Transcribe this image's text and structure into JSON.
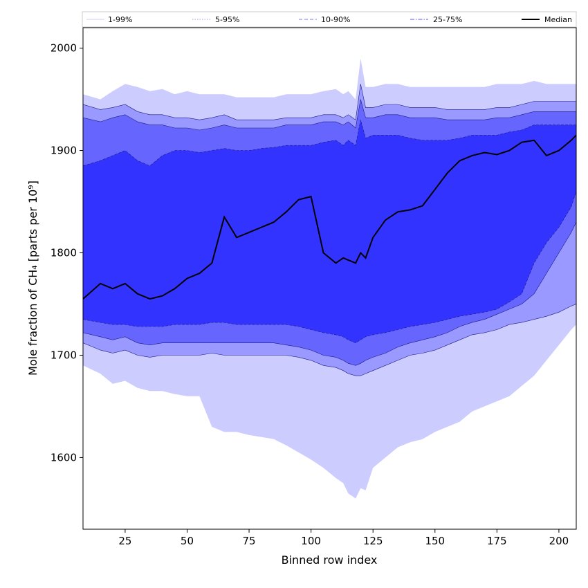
{
  "chart_data": {
    "type": "area",
    "xlabel": "Binned row index",
    "ylabel": "Mole fraction of CH₄ [parts per 10⁹]",
    "xlim": [
      8,
      207
    ],
    "ylim": [
      1530,
      2020
    ],
    "xticks": [
      25,
      50,
      75,
      100,
      125,
      150,
      175,
      200
    ],
    "yticks": [
      1600,
      1700,
      1800,
      1900,
      2000
    ],
    "grid": false,
    "legend_position": "top",
    "legend": [
      {
        "label": "1-99%",
        "color": "#ccccff",
        "style": "thin"
      },
      {
        "label": "5-95%",
        "color": "#9999ff",
        "style": "dotted"
      },
      {
        "label": "10-90%",
        "color": "#7777ff",
        "style": "dashed"
      },
      {
        "label": "25-75%",
        "color": "#5555ff",
        "style": "dashdot"
      },
      {
        "label": "Median",
        "color": "#000000",
        "style": "solid"
      }
    ],
    "x": [
      8,
      15,
      20,
      25,
      30,
      35,
      40,
      45,
      50,
      55,
      60,
      65,
      70,
      75,
      80,
      85,
      90,
      95,
      100,
      105,
      110,
      113,
      115,
      118,
      120,
      122,
      125,
      130,
      135,
      140,
      145,
      150,
      155,
      160,
      165,
      170,
      175,
      180,
      185,
      190,
      195,
      200,
      205,
      207
    ],
    "bands": [
      {
        "name": "1-99%",
        "color": "#ccccff",
        "lower": [
          1690,
          1682,
          1672,
          1675,
          1668,
          1665,
          1665,
          1662,
          1660,
          1660,
          1630,
          1625,
          1625,
          1622,
          1620,
          1618,
          1612,
          1605,
          1598,
          1590,
          1580,
          1575,
          1565,
          1560,
          1570,
          1568,
          1590,
          1600,
          1610,
          1615,
          1618,
          1625,
          1630,
          1635,
          1645,
          1650,
          1655,
          1660,
          1670,
          1680,
          1695,
          1710,
          1725,
          1730
        ],
        "upper": [
          1955,
          1950,
          1958,
          1965,
          1962,
          1958,
          1960,
          1955,
          1958,
          1955,
          1955,
          1955,
          1952,
          1952,
          1952,
          1952,
          1955,
          1955,
          1955,
          1958,
          1960,
          1955,
          1958,
          1950,
          1990,
          1962,
          1962,
          1965,
          1965,
          1962,
          1962,
          1962,
          1962,
          1962,
          1962,
          1962,
          1965,
          1965,
          1965,
          1968,
          1965,
          1965,
          1965,
          1965
        ]
      },
      {
        "name": "5-95%",
        "color": "#9999ff",
        "lower": [
          1712,
          1705,
          1702,
          1705,
          1700,
          1698,
          1700,
          1700,
          1700,
          1700,
          1702,
          1700,
          1700,
          1700,
          1700,
          1700,
          1700,
          1698,
          1695,
          1690,
          1688,
          1685,
          1682,
          1680,
          1680,
          1682,
          1685,
          1690,
          1695,
          1700,
          1702,
          1705,
          1710,
          1715,
          1720,
          1722,
          1725,
          1730,
          1732,
          1735,
          1738,
          1742,
          1748,
          1750
        ],
        "upper": [
          1945,
          1940,
          1942,
          1945,
          1938,
          1935,
          1935,
          1932,
          1932,
          1930,
          1932,
          1935,
          1930,
          1930,
          1930,
          1930,
          1932,
          1932,
          1932,
          1935,
          1935,
          1932,
          1935,
          1930,
          1965,
          1942,
          1942,
          1945,
          1945,
          1942,
          1942,
          1942,
          1940,
          1940,
          1940,
          1940,
          1942,
          1942,
          1945,
          1948,
          1948,
          1948,
          1948,
          1948
        ]
      },
      {
        "name": "10-90%",
        "color": "#6666ff",
        "lower": [
          1722,
          1718,
          1715,
          1718,
          1712,
          1710,
          1712,
          1712,
          1712,
          1712,
          1712,
          1712,
          1712,
          1712,
          1712,
          1712,
          1710,
          1708,
          1705,
          1700,
          1698,
          1695,
          1692,
          1690,
          1692,
          1695,
          1698,
          1702,
          1708,
          1712,
          1715,
          1718,
          1722,
          1728,
          1732,
          1735,
          1740,
          1745,
          1750,
          1760,
          1780,
          1800,
          1820,
          1830
        ],
        "upper": [
          1932,
          1928,
          1932,
          1935,
          1928,
          1925,
          1925,
          1922,
          1922,
          1920,
          1922,
          1925,
          1922,
          1922,
          1922,
          1922,
          1925,
          1925,
          1925,
          1928,
          1928,
          1925,
          1928,
          1922,
          1950,
          1932,
          1932,
          1935,
          1935,
          1932,
          1932,
          1932,
          1930,
          1930,
          1930,
          1930,
          1932,
          1932,
          1935,
          1938,
          1938,
          1938,
          1938,
          1938
        ]
      },
      {
        "name": "25-75%",
        "color": "#3333ff",
        "lower": [
          1735,
          1732,
          1730,
          1730,
          1728,
          1728,
          1728,
          1730,
          1730,
          1730,
          1732,
          1732,
          1730,
          1730,
          1730,
          1730,
          1730,
          1728,
          1725,
          1722,
          1720,
          1718,
          1715,
          1712,
          1715,
          1718,
          1720,
          1722,
          1725,
          1728,
          1730,
          1732,
          1735,
          1738,
          1740,
          1742,
          1745,
          1752,
          1760,
          1790,
          1810,
          1825,
          1845,
          1860
        ],
        "upper": [
          1885,
          1890,
          1895,
          1900,
          1890,
          1885,
          1895,
          1900,
          1900,
          1898,
          1900,
          1902,
          1900,
          1900,
          1902,
          1903,
          1905,
          1905,
          1905,
          1908,
          1910,
          1905,
          1910,
          1905,
          1930,
          1912,
          1915,
          1915,
          1915,
          1912,
          1910,
          1910,
          1910,
          1912,
          1915,
          1915,
          1915,
          1918,
          1920,
          1925,
          1925,
          1925,
          1925,
          1925
        ]
      }
    ],
    "series": [
      {
        "name": "Median",
        "color": "#000000",
        "values": [
          1755,
          1770,
          1765,
          1770,
          1760,
          1755,
          1758,
          1765,
          1775,
          1780,
          1790,
          1835,
          1815,
          1820,
          1825,
          1830,
          1840,
          1852,
          1855,
          1800,
          1790,
          1795,
          1793,
          1790,
          1800,
          1795,
          1815,
          1832,
          1840,
          1842,
          1846,
          1862,
          1878,
          1890,
          1895,
          1898,
          1896,
          1900,
          1908,
          1910,
          1895,
          1900,
          1910,
          1915
        ]
      }
    ]
  }
}
